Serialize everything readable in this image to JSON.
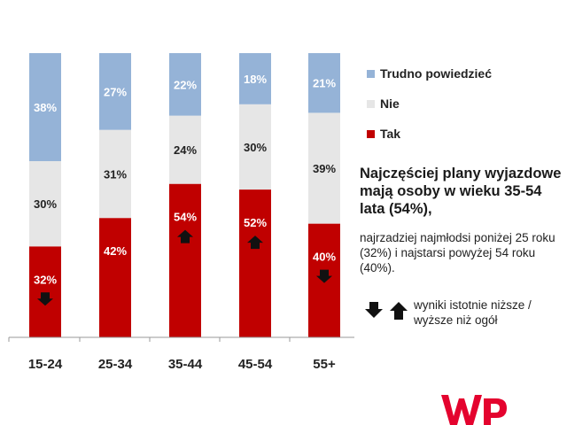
{
  "chart_data": {
    "type": "bar",
    "stacked": true,
    "categories": [
      "15-24",
      "25-34",
      "35-44",
      "45-54",
      "55+"
    ],
    "series": [
      {
        "name": "Tak",
        "values": [
          32,
          42,
          54,
          52,
          40
        ],
        "color": "#c00000"
      },
      {
        "name": "Nie",
        "values": [
          30,
          31,
          24,
          30,
          39
        ],
        "color": "#e6e6e6"
      },
      {
        "name": "Trudno powiedzieć",
        "values": [
          38,
          27,
          22,
          18,
          21
        ],
        "color": "#95b3d7"
      }
    ],
    "value_labels": [
      [
        "32%",
        "30%",
        "38%"
      ],
      [
        "42%",
        "31%",
        "27%"
      ],
      [
        "54%",
        "24%",
        "22%"
      ],
      [
        "52%",
        "30%",
        "18%"
      ],
      [
        "40%",
        "39%",
        "21%"
      ]
    ],
    "significance": [
      "down",
      "none",
      "up",
      "up",
      "down"
    ],
    "ylim": [
      0,
      100
    ],
    "legend_position": "right",
    "grid": false
  },
  "legend": [
    {
      "label": "Trudno powiedzieć",
      "color": "#95b3d7"
    },
    {
      "label": "Nie",
      "color": "#e6e6e6"
    },
    {
      "label": "Tak",
      "color": "#c00000"
    }
  ],
  "headline": "Najczęściej plany wyjazdowe mają osoby w wieku 35-54 lata (54%),",
  "subtext": "najrzadziej najmłodsi poniżej 25 roku (32%) i najstarsi powyżej 54 roku (40%).",
  "note": "wyniki istotnie niższe / wyższe niż ogół",
  "icons": {
    "down": "arrow-down-icon",
    "up": "arrow-up-icon",
    "logo": "wp-logo"
  },
  "logo_text": "WP"
}
